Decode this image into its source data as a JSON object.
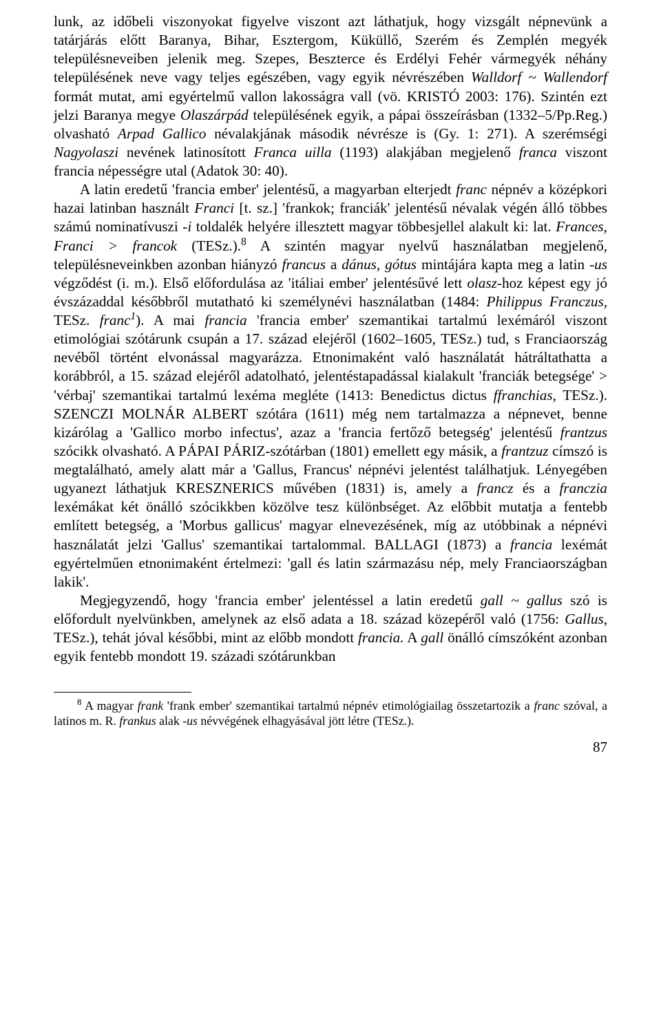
{
  "body": {
    "para1_a": "lunk, az időbeli viszonyokat figyelve viszont azt láthatjuk, hogy vizsgált népnevünk a tatárjárás előtt Baranya, Bihar, Esztergom, Küküllő, Szerém és Zemplén megyék településneveiben jelenik meg. Szepes, Beszterce és Erdélyi Fehér vármegyék néhány településének neve vagy teljes egészében, vagy egyik névrészében ",
    "para1_b": "Walldorf ~ Wallendorf",
    "para1_c": " formát mutat, ami egyértelmű vallon lakosságra vall (vö. K",
    "para1_d": "RISTÓ",
    "para1_e": " 2003: 176). Szintén ezt jelzi Baranya megye ",
    "para1_f": "Olaszárpád",
    "para1_g": " településének egyik, a pápai összeírásban (1332–5/Pp.Reg.) olvasható ",
    "para1_h": "Arpad Gallico",
    "para1_i": " névalakjának második névrésze is (Gy. 1: 271). A szerémségi ",
    "para1_j": "Nagyolaszi",
    "para1_k": " nevének latinosított ",
    "para1_l": "Franca uilla",
    "para1_m": " (1193) alakjában megjelenő ",
    "para1_n": "franca",
    "para1_o": " viszont francia népességre utal (Adatok 30: 40).",
    "para2_a": "A latin eredetű 'francia ember' jelentésű, a magyarban elterjedt ",
    "para2_b": "franc",
    "para2_c": " népnév a középkori hazai latinban használt ",
    "para2_d": "Franci",
    "para2_e": " [t. sz.] 'frankok; franciák' jelentésű névalak végén álló többes számú nominatívuszi ",
    "para2_f": "-i",
    "para2_g": " toldalék helyére illesztett magyar többesjellel alakult ki: lat. ",
    "para2_h": "Frances, Franci > francok",
    "para2_i": " (TESz.).",
    "para2_sup": "8",
    "para2_j": " A szintén magyar nyelvű használatban megjelenő, településneveinkben azonban hiányzó ",
    "para2_k": "francus",
    "para2_l": " a ",
    "para2_m": "dánus, gótus",
    "para2_n": " mintájára kapta meg a latin ",
    "para2_o": "-us",
    "para2_p": " végződést (i. m.). Első előfordulása az 'itáliai ember' jelentésűvé lett ",
    "para2_q": "olasz",
    "para2_r": "-hoz képest egy jó évszázaddal későbbről mutatható ki személynévi használatban (1484: ",
    "para2_s": "Philippus Franczus,",
    "para2_t": " TESz. ",
    "para2_u": "franc",
    "para2_u_sup": "1",
    "para2_v": "). A mai ",
    "para2_w": "francia",
    "para2_x": " 'francia ember' szemantikai tartalmú lexémáról viszont etimológiai szótárunk csupán a 17. század elejéről (1602–1605, TESz.) tud, s Franciaország nevéből történt elvonással magyarázza. Etnonimaként való használatát hátráltathatta a korábbról, a 15. század elejéről adatolható, jelentéstapadással kialakult 'franciák betegsége' > 'vérbaj' szemantikai tartalmú lexéma megléte (1413: Benedictus dictus ",
    "para2_y": "ffranchias,",
    "para2_z": " TESz.). S",
    "para2_za": "ZENCZI",
    "para2_zb": " M",
    "para2_zc": "OLNÁR",
    "para2_zd": " A",
    "para2_ze": "LBERT",
    "para2_zf": " szótára (1611) még nem tartalmazza a népnevet, benne kizárólag a 'Gallico morbo infectus', azaz a 'francia fertőző betegség' jelentésű ",
    "para2_zg": "frantzus",
    "para2_zh": " szócikk olvasható. A P",
    "para2_zi": "ÁPAI",
    "para2_zj": " P",
    "para2_zk": "ÁRIZ",
    "para2_zl": "-szótárban (1801) emellett egy másik, a ",
    "para2_zm": "frantzuz",
    "para2_zn": " címszó is megtalálható, amely alatt már a 'Gallus, Francus' népnévi jelentést találhatjuk. Lényegében ugyanezt láthatjuk K",
    "para2_zo": "RESZNERICS",
    "para2_zp": " művében (1831) is, amely a ",
    "para2_zq": "francz",
    "para2_zr": " és a ",
    "para2_zs": "franczia",
    "para2_zt": " lexémákat két önálló szócikkben közölve tesz különbséget. Az előbbit mutatja a fentebb említett betegség, a 'Morbus gallicus' magyar elnevezésének, míg az utóbbinak a népnévi használatát jelzi 'Gallus' szemantikai tartalommal. B",
    "para2_zu": "ALLAGI",
    "para2_zv": " (1873) a ",
    "para2_zw": "francia",
    "para2_zx": " lexémát egyértelműen etnonimaként értelmezi: 'gall és latin származásu nép, mely Franciaországban lakik'.",
    "para3_a": "Megjegyzendő, hogy 'francia ember' jelentéssel a latin eredetű ",
    "para3_b": "gall ~ gallus",
    "para3_c": " szó is előfordult nyelvünkben, amelynek az első adata a 18. század közepéről való (1756: ",
    "para3_d": "Gallus,",
    "para3_e": " TESz.), tehát jóval későbbi, mint az előbb mondott ",
    "para3_f": "francia.",
    "para3_g": " A ",
    "para3_h": "gall",
    "para3_i": " önálló címszóként azonban egyik fentebb mondott 19. századi szótárunkban"
  },
  "footnote": {
    "sup": "8",
    "a": " A magyar ",
    "b": "frank",
    "c": " 'frank ember' szemantikai tartalmú népnév etimológiailag összetartozik a ",
    "d": "franc",
    "e": " szóval, a latinos m. R. ",
    "f": "frankus",
    "g": " alak ",
    "h": "-us",
    "i": " névvégének elhagyásával jött létre (TESz.)."
  },
  "pagenum": "87"
}
